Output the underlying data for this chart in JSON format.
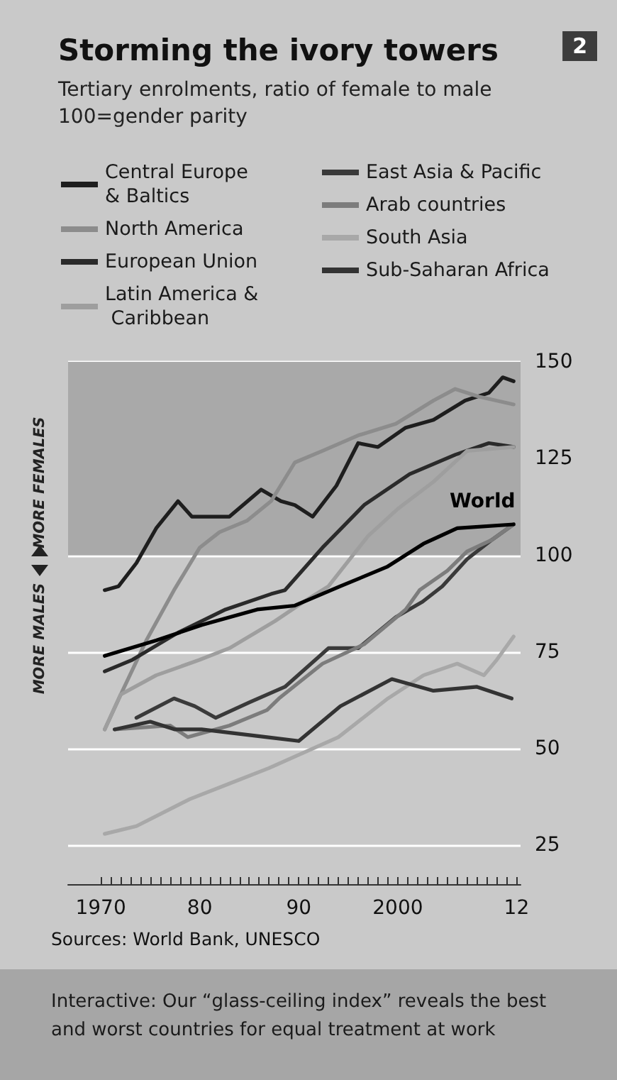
{
  "chart_data": {
    "type": "line",
    "title": "Storming the ivory towers",
    "subtitle": "Tertiary enrolments, ratio of female to male\n100=gender parity",
    "annotations": [
      "2",
      "MORE FEMALES",
      "MORE MALES",
      "Sources: World Bank, UNESCO",
      "Interactive: Our “glass-ceiling index” reveals the best\nand worst countries for equal treatment at work"
    ],
    "series": [
      {
        "name": "Central Europe & Baltics",
        "color": "#1e1e1e",
        "x": [
          1970.4,
          1971.8,
          1973.6,
          1975.6,
          1977.8,
          1979.2,
          1983,
          1986.2,
          1988.2,
          1989.6,
          1991.4,
          1993.8,
          1996,
          1998,
          2000.8,
          2003.6,
          2006.8,
          2009.2,
          2010.6,
          2011.7
        ],
        "values": [
          91,
          92,
          98,
          107,
          114,
          110,
          110,
          117,
          114,
          113,
          110,
          118,
          129,
          128,
          133,
          135,
          140,
          142,
          146,
          145
        ]
      },
      {
        "name": "North America",
        "color": "#8c8c8c",
        "x": [
          1970.4,
          1972.2,
          1974.6,
          1977.4,
          1980,
          1982,
          1984.8,
          1987.2,
          1989.6,
          1992.4,
          1996,
          1999.8,
          2003.6,
          2005.8,
          2008.2,
          2011.7
        ],
        "values": [
          55,
          65,
          78,
          91,
          102,
          106,
          109,
          114,
          124,
          127,
          131,
          134,
          140,
          143,
          141,
          139
        ]
      },
      {
        "name": "European Union",
        "color": "#2a2a2a",
        "x": [
          1970.4,
          1973.2,
          1977.8,
          1982.6,
          1987.2,
          1988.6,
          1992.4,
          1996.6,
          2001.2,
          2005.8,
          2009.2,
          2011.7
        ],
        "values": [
          70,
          73,
          80,
          86,
          90,
          91,
          102,
          113,
          121,
          126,
          129,
          128
        ]
      },
      {
        "name": "Latin America & Caribbean",
        "color": "#9e9e9e",
        "x": [
          1970.4,
          1972,
          1975.6,
          1980,
          1983,
          1987.6,
          1990.5,
          1993,
          1997,
          2000,
          2003.6,
          2007,
          2011.7
        ],
        "values": [
          55,
          64,
          69,
          73,
          76,
          83,
          88,
          92,
          105,
          112,
          119,
          127,
          128
        ]
      },
      {
        "name": "East Asia & Pacific",
        "color": "#3a3a3a",
        "x": [
          1973.6,
          1977.4,
          1979.5,
          1981.6,
          1985,
          1988.6,
          1993,
          1996,
          1999.8,
          2002.5,
          2004.5,
          2007,
          2009.5,
          2011.7
        ],
        "values": [
          58,
          63,
          61,
          58,
          62,
          66,
          76,
          76,
          84,
          88,
          92,
          99,
          104,
          108
        ]
      },
      {
        "name": "Arab countries",
        "color": "#7c7c7c",
        "x": [
          1971.4,
          1977,
          1978.8,
          1983,
          1986.8,
          1988,
          1992.4,
          1996.6,
          2000.8,
          2002.2,
          2005,
          2007,
          2009.5,
          2011.7
        ],
        "values": [
          55,
          56,
          53,
          56,
          60,
          63,
          72,
          77,
          86,
          91,
          96,
          101,
          104,
          108
        ]
      },
      {
        "name": "South Asia",
        "color": "#a8a8a8",
        "x": [
          1970.4,
          1973.6,
          1979,
          1983,
          1987,
          1994,
          1999,
          2002.6,
          2006,
          2008.7,
          2010,
          2011.7
        ],
        "values": [
          28,
          30,
          37,
          41,
          45,
          53,
          63,
          69,
          72,
          69,
          73,
          79
        ]
      },
      {
        "name": "Sub-Saharan Africa",
        "color": "#333333",
        "x": [
          1971.4,
          1975,
          1977.5,
          1980.2,
          1986.8,
          1990,
          1994.2,
          1999.4,
          2003.6,
          2008,
          2011.5
        ],
        "values": [
          55,
          57,
          55,
          55,
          53,
          52,
          61,
          68,
          65,
          66,
          63
        ]
      },
      {
        "name": "World",
        "color": "#000000",
        "x": [
          1970.4,
          1975.6,
          1980.2,
          1985.8,
          1989.6,
          1994.2,
          1998.9,
          2002.6,
          2006,
          2011.7
        ],
        "values": [
          74,
          78,
          82,
          86,
          87,
          92,
          97,
          103,
          107,
          108
        ]
      }
    ],
    "xlim": [
      1966.7,
      2012.4
    ],
    "xticks": [
      {
        "value": 1970,
        "label": "1970"
      },
      {
        "value": 1971,
        "label": null
      },
      {
        "value": 1972,
        "label": null
      },
      {
        "value": 1973,
        "label": null
      },
      {
        "value": 1974,
        "label": null
      },
      {
        "value": 1975,
        "label": null
      },
      {
        "value": 1976,
        "label": null
      },
      {
        "value": 1977,
        "label": null
      },
      {
        "value": 1978,
        "label": null
      },
      {
        "value": 1979,
        "label": null
      },
      {
        "value": 1980,
        "label": "80"
      },
      {
        "value": 1981,
        "label": null
      },
      {
        "value": 1982,
        "label": null
      },
      {
        "value": 1983,
        "label": null
      },
      {
        "value": 1984,
        "label": null
      },
      {
        "value": 1985,
        "label": null
      },
      {
        "value": 1986,
        "label": null
      },
      {
        "value": 1987,
        "label": null
      },
      {
        "value": 1988,
        "label": null
      },
      {
        "value": 1989,
        "label": null
      },
      {
        "value": 1990,
        "label": "90"
      },
      {
        "value": 1991,
        "label": null
      },
      {
        "value": 1992,
        "label": null
      },
      {
        "value": 1993,
        "label": null
      },
      {
        "value": 1994,
        "label": null
      },
      {
        "value": 1995,
        "label": null
      },
      {
        "value": 1996,
        "label": null
      },
      {
        "value": 1997,
        "label": null
      },
      {
        "value": 1998,
        "label": null
      },
      {
        "value": 1999,
        "label": null
      },
      {
        "value": 2000,
        "label": "2000"
      },
      {
        "value": 2001,
        "label": null
      },
      {
        "value": 2002,
        "label": null
      },
      {
        "value": 2003,
        "label": null
      },
      {
        "value": 2004,
        "label": null
      },
      {
        "value": 2005,
        "label": null
      },
      {
        "value": 2006,
        "label": null
      },
      {
        "value": 2007,
        "label": null
      },
      {
        "value": 2008,
        "label": null
      },
      {
        "value": 2009,
        "label": null
      },
      {
        "value": 2010,
        "label": null
      },
      {
        "value": 2011,
        "label": null
      },
      {
        "value": 2012,
        "label": "12"
      }
    ],
    "ylim": [
      15,
      150
    ],
    "yticks": [
      25,
      50,
      75,
      100,
      125,
      150
    ],
    "bands": [
      {
        "axis": "y",
        "from": 100,
        "to": 150,
        "color": "#a9a9a9"
      }
    ],
    "grid": "y",
    "legend": "top",
    "marker": "none",
    "line_style": "solid"
  }
}
